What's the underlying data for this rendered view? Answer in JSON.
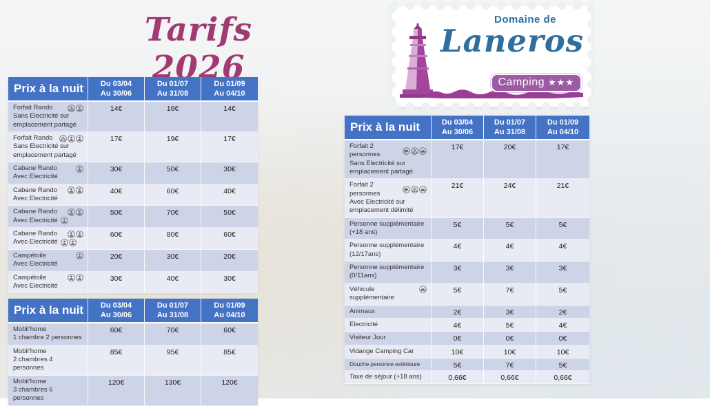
{
  "page": {
    "title": "Tarifs 2026"
  },
  "logo": {
    "line1": "Domaine de",
    "name": "Laneros",
    "badge_label": "Camping",
    "stars": "★★★"
  },
  "colors": {
    "header_blue": "#4472C4",
    "row_dark": "#CDD4E8",
    "row_light": "#E9EBF4",
    "title_plum": "#A23A72",
    "logo_blue": "#2E6F9E",
    "logo_purple": "#9C3D94",
    "badge_purple": "#9C5BA3"
  },
  "tables": [
    {
      "name": "tarifs-rando-campetoile",
      "corner_label": "Prix à la nuit",
      "columns": [
        {
          "line1": "Du 03/04",
          "line2": "Au 30/06"
        },
        {
          "line1": "Du 01/07",
          "line2": "Au 31/08"
        },
        {
          "line1": "Du 01/09",
          "line2": "Au 04/10"
        }
      ],
      "rows": [
        {
          "title": "Forfait Rando",
          "title_icons": [
            "tent-icon",
            "person-icon"
          ],
          "subtitle": "Sans Electricité sur emplacement partagé",
          "prices": [
            "14€",
            "16€",
            "14€"
          ]
        },
        {
          "title": "Forfait Rando",
          "title_icons": [
            "tent-icon",
            "person-icon",
            "person-icon"
          ],
          "subtitle": "Sans Electricité sur emplacement partagé",
          "prices": [
            "17€",
            "19€",
            "17€"
          ]
        },
        {
          "title": "Cabane Rando",
          "title_icons": [
            "person-icon"
          ],
          "subtitle": "Avec Electricité",
          "prices": [
            "30€",
            "50€",
            "30€"
          ]
        },
        {
          "title": "Cabane Rando",
          "title_icons": [
            "person-icon",
            "person-icon"
          ],
          "subtitle": "Avec Electricité",
          "prices": [
            "40€",
            "60€",
            "40€"
          ]
        },
        {
          "title": "Cabane Rando",
          "title_icons": [
            "person-icon",
            "person-icon"
          ],
          "subtitle": "Avec Electricité",
          "subtitle_icons": [
            "person-icon"
          ],
          "prices": [
            "50€",
            "70€",
            "50€"
          ]
        },
        {
          "title": "Cabane Rando",
          "title_icons": [
            "person-icon",
            "person-icon"
          ],
          "subtitle": "Avec Electricité",
          "subtitle_icons": [
            "person-icon",
            "person-icon"
          ],
          "prices": [
            "60€",
            "80€",
            "60€"
          ]
        },
        {
          "title": "Campétoile",
          "title_icons": [
            "person-icon"
          ],
          "subtitle": "Avec Electricité",
          "prices": [
            "20€",
            "30€",
            "20€"
          ]
        },
        {
          "title": "Campétoile",
          "title_icons": [
            "person-icon",
            "person-icon"
          ],
          "subtitle": "Avec Electricité",
          "prices": [
            "30€",
            "40€",
            "30€"
          ]
        }
      ]
    },
    {
      "name": "tarifs-mobilhome",
      "corner_label": "Prix à la nuit",
      "columns": [
        {
          "line1": "Du 03/04",
          "line2": "Au 30/06"
        },
        {
          "line1": "Du 01/07",
          "line2": "Au 31/08"
        },
        {
          "line1": "Du 01/09",
          "line2": "Au 04/10"
        }
      ],
      "rows": [
        {
          "title": "Mobil’home",
          "subtitle": "1 chambre 2 personnes",
          "prices": [
            "60€",
            "70€",
            "60€"
          ]
        },
        {
          "title": "Mobil’home",
          "subtitle": "2 chambres 4 personnes",
          "prices": [
            "85€",
            "95€",
            "85€"
          ]
        },
        {
          "title": "Mobil’home",
          "subtitle": "3 chambres 6 personnes",
          "prices": [
            "120€",
            "130€",
            "120€"
          ]
        }
      ]
    },
    {
      "name": "tarifs-emplacements-supplements",
      "corner_label": "Prix à la nuit",
      "columns": [
        {
          "line1": "Du 03/04",
          "line2": "Au 30/06"
        },
        {
          "line1": "Du 01/07",
          "line2": "Au 31/08"
        },
        {
          "line1": "Du 01/09",
          "line2": "Au 04/10"
        }
      ],
      "rows": [
        {
          "title": "Forfait 2 personnes",
          "title_icons": [
            "caravan-icon",
            "tent-icon",
            "car-icon"
          ],
          "subtitle": "Sans Electricité sur emplacement partagé",
          "prices": [
            "17€",
            "20€",
            "17€"
          ]
        },
        {
          "title": "Forfait 2 personnes",
          "title_icons": [
            "caravan-icon",
            "tent-icon",
            "car-icon"
          ],
          "subtitle": "Avec Electricité sur emplacement délimité",
          "prices": [
            "21€",
            "24€",
            "21€"
          ]
        },
        {
          "title": "Personne supplémentaire",
          "subtitle": "(+18 ans)",
          "prices": [
            "5€",
            "5€",
            "5€"
          ]
        },
        {
          "title": "Personne supplémentaire",
          "subtitle": "(12/17ans)",
          "prices": [
            "4€",
            "4€",
            "4€"
          ]
        },
        {
          "title": "Personne supplémentaire",
          "subtitle": "(0/11ans)",
          "prices": [
            "3€",
            "3€",
            "3€"
          ]
        },
        {
          "title": "Véhicule",
          "title_icons": [
            "car-icon"
          ],
          "subtitle": "supplémentaire",
          "prices": [
            "5€",
            "7€",
            "5€"
          ]
        },
        {
          "title": "Animaux",
          "prices": [
            "2€",
            "3€",
            "2€"
          ]
        },
        {
          "title": "Electricité",
          "prices": [
            "4€",
            "5€",
            "4€"
          ]
        },
        {
          "title": "Visiteur Jour",
          "prices": [
            "0€",
            "0€",
            "0€"
          ]
        },
        {
          "title": "Vidange Camping Car",
          "prices": [
            "10€",
            "10€",
            "10€"
          ]
        },
        {
          "title": "Douche personne extérieure",
          "condensed": true,
          "prices": [
            "5€",
            "7€",
            "5€"
          ]
        },
        {
          "title": "Taxe de séjour (+18 ans)",
          "prices": [
            "0,66€",
            "0,66€",
            "0,66€"
          ]
        }
      ]
    }
  ]
}
